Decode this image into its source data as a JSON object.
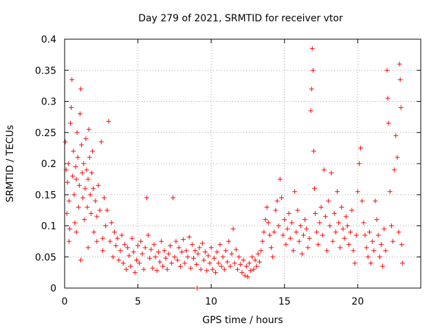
{
  "chart_data": {
    "type": "scatter",
    "title": "Day 279 of 2021, SRMTID for receiver vtor",
    "xlabel": "GPS time / hours",
    "ylabel": "SRMTID / TECUs",
    "xlim": [
      0,
      24.3
    ],
    "ylim": [
      0,
      0.4
    ],
    "xticks": [
      0,
      5,
      10,
      15,
      20
    ],
    "xtick_labels": [
      "0",
      "5",
      "10",
      "15",
      "20"
    ],
    "yticks": [
      0,
      0.05,
      0.1,
      0.15,
      0.2,
      0.25,
      0.3,
      0.35,
      0.4
    ],
    "ytick_labels": [
      "0",
      "0.05",
      "0.1",
      "0.15",
      "0.2",
      "0.25",
      "0.3",
      "0.35",
      "0.4"
    ],
    "grid": true,
    "marker": "+",
    "color": "#ff0000",
    "series": [
      {
        "name": "SRMTID",
        "points": [
          [
            0.05,
            0.235
          ],
          [
            0.1,
            0.19
          ],
          [
            0.15,
            0.12
          ],
          [
            0.2,
            0.17
          ],
          [
            0.25,
            0.2
          ],
          [
            0.3,
            0.14
          ],
          [
            0.35,
            0.095
          ],
          [
            0.4,
            0.265
          ],
          [
            0.45,
            0.29
          ],
          [
            0.5,
            0.335
          ],
          [
            0.55,
            0.18
          ],
          [
            0.6,
            0.22
          ],
          [
            0.65,
            0.15
          ],
          [
            0.7,
            0.105
          ],
          [
            0.75,
            0.195
          ],
          [
            0.8,
            0.175
          ],
          [
            0.85,
            0.25
          ],
          [
            0.9,
            0.21
          ],
          [
            0.95,
            0.13
          ],
          [
            1.0,
            0.165
          ],
          [
            1.05,
            0.28
          ],
          [
            1.1,
            0.32
          ],
          [
            1.15,
            0.23
          ],
          [
            1.2,
            0.185
          ],
          [
            1.25,
            0.145
          ],
          [
            1.3,
            0.2
          ],
          [
            1.35,
            0.11
          ],
          [
            1.4,
            0.16
          ],
          [
            1.45,
            0.24
          ],
          [
            1.5,
            0.19
          ],
          [
            1.55,
            0.13
          ],
          [
            1.6,
            0.175
          ],
          [
            1.65,
            0.255
          ],
          [
            1.7,
            0.21
          ],
          [
            1.75,
            0.15
          ],
          [
            1.8,
            0.12
          ],
          [
            1.85,
            0.185
          ],
          [
            1.9,
            0.22
          ],
          [
            1.95,
            0.16
          ],
          [
            2.0,
            0.09
          ],
          [
            2.1,
            0.14
          ],
          [
            2.2,
            0.115
          ],
          [
            2.3,
            0.165
          ],
          [
            2.4,
            0.125
          ],
          [
            2.5,
            0.235
          ],
          [
            2.6,
            0.08
          ],
          [
            2.7,
            0.145
          ],
          [
            2.8,
            0.1
          ],
          [
            2.9,
            0.125
          ],
          [
            3.0,
            0.268
          ],
          [
            0.3,
            0.075
          ],
          [
            0.8,
            0.09
          ],
          [
            1.1,
            0.045
          ],
          [
            1.6,
            0.065
          ],
          [
            2.2,
            0.075
          ],
          [
            2.6,
            0.06
          ],
          [
            3.1,
            0.075
          ],
          [
            3.2,
            0.105
          ],
          [
            3.3,
            0.05
          ],
          [
            3.4,
            0.09
          ],
          [
            3.5,
            0.068
          ],
          [
            3.6,
            0.08
          ],
          [
            3.7,
            0.045
          ],
          [
            3.8,
            0.06
          ],
          [
            3.9,
            0.085
          ],
          [
            4.0,
            0.04
          ],
          [
            4.1,
            0.07
          ],
          [
            4.2,
            0.03
          ],
          [
            4.3,
            0.065
          ],
          [
            4.4,
            0.052
          ],
          [
            4.5,
            0.035
          ],
          [
            4.6,
            0.08
          ],
          [
            4.7,
            0.058
          ],
          [
            4.8,
            0.025
          ],
          [
            4.9,
            0.045
          ],
          [
            5.0,
            0.068
          ],
          [
            5.1,
            0.04
          ],
          [
            5.2,
            0.075
          ],
          [
            5.3,
            0.055
          ],
          [
            5.4,
            0.03
          ],
          [
            5.5,
            0.065
          ],
          [
            5.6,
            0.145
          ],
          [
            5.7,
            0.085
          ],
          [
            5.8,
            0.048
          ],
          [
            5.9,
            0.062
          ],
          [
            6.0,
            0.032
          ],
          [
            6.1,
            0.07
          ],
          [
            6.2,
            0.05
          ],
          [
            6.3,
            0.028
          ],
          [
            6.4,
            0.058
          ],
          [
            6.5,
            0.042
          ],
          [
            6.6,
            0.075
          ],
          [
            6.7,
            0.035
          ],
          [
            6.8,
            0.06
          ],
          [
            6.9,
            0.048
          ],
          [
            7.0,
            0.03
          ],
          [
            7.1,
            0.055
          ],
          [
            7.2,
            0.068
          ],
          [
            7.3,
            0.04
          ],
          [
            7.4,
            0.145
          ],
          [
            7.5,
            0.05
          ],
          [
            7.6,
            0.075
          ],
          [
            7.7,
            0.045
          ],
          [
            7.8,
            0.065
          ],
          [
            7.9,
            0.035
          ],
          [
            8.0,
            0.058
          ],
          [
            8.1,
            0.078
          ],
          [
            8.2,
            0.04
          ],
          [
            8.3,
            0.06
          ],
          [
            8.4,
            0.05
          ],
          [
            8.5,
            0.082
          ],
          [
            8.6,
            0.032
          ],
          [
            8.7,
            0.07
          ],
          [
            8.8,
            0.048
          ],
          [
            8.9,
            0.06
          ],
          [
            9.0,
            0.038
          ],
          [
            9.05,
            0.0
          ],
          [
            9.1,
            0.055
          ],
          [
            9.2,
            0.065
          ],
          [
            9.3,
            0.03
          ],
          [
            9.4,
            0.072
          ],
          [
            9.5,
            0.045
          ],
          [
            9.6,
            0.058
          ],
          [
            9.7,
            0.028
          ],
          [
            9.8,
            0.052
          ],
          [
            9.9,
            0.04
          ],
          [
            10.0,
            0.065
          ],
          [
            10.1,
            0.03
          ],
          [
            10.2,
            0.048
          ],
          [
            10.3,
            0.025
          ],
          [
            10.4,
            0.058
          ],
          [
            10.5,
            0.04
          ],
          [
            10.6,
            0.07
          ],
          [
            10.7,
            0.035
          ],
          [
            10.8,
            0.05
          ],
          [
            10.9,
            0.03
          ],
          [
            11.0,
            0.06
          ],
          [
            11.1,
            0.042
          ],
          [
            11.2,
            0.075
          ],
          [
            11.3,
            0.035
          ],
          [
            11.4,
            0.055
          ],
          [
            11.5,
            0.095
          ],
          [
            11.6,
            0.04
          ],
          [
            11.7,
            0.062
          ],
          [
            11.8,
            0.03
          ],
          [
            11.9,
            0.05
          ],
          [
            12.0,
            0.038
          ],
          [
            12.1,
            0.025
          ],
          [
            12.2,
            0.045
          ],
          [
            12.3,
            0.02
          ],
          [
            12.4,
            0.035
          ],
          [
            12.5,
            0.018
          ],
          [
            12.6,
            0.04
          ],
          [
            12.7,
            0.028
          ],
          [
            12.8,
            0.05
          ],
          [
            12.9,
            0.03
          ],
          [
            13.0,
            0.045
          ],
          [
            13.1,
            0.035
          ],
          [
            13.2,
            0.055
          ],
          [
            13.3,
            0.042
          ],
          [
            13.4,
            0.06
          ],
          [
            13.5,
            0.075
          ],
          [
            13.6,
            0.09
          ],
          [
            13.7,
            0.11
          ],
          [
            13.8,
            0.13
          ],
          [
            13.9,
            0.105
          ],
          [
            14.0,
            0.085
          ],
          [
            14.1,
            0.065
          ],
          [
            14.2,
            0.05
          ],
          [
            14.3,
            0.09
          ],
          [
            14.4,
            0.125
          ],
          [
            14.5,
            0.14
          ],
          [
            14.6,
            0.1
          ],
          [
            14.7,
            0.175
          ],
          [
            14.8,
            0.145
          ],
          [
            14.9,
            0.085
          ],
          [
            15.0,
            0.11
          ],
          [
            15.1,
            0.07
          ],
          [
            15.2,
            0.095
          ],
          [
            15.3,
            0.12
          ],
          [
            15.4,
            0.08
          ],
          [
            15.5,
            0.105
          ],
          [
            15.6,
            0.06
          ],
          [
            15.7,
            0.155
          ],
          [
            15.8,
            0.09
          ],
          [
            15.9,
            0.125
          ],
          [
            16.0,
            0.075
          ],
          [
            16.1,
            0.1
          ],
          [
            16.2,
            0.055
          ],
          [
            16.3,
            0.085
          ],
          [
            16.4,
            0.11
          ],
          [
            16.5,
            0.095
          ],
          [
            16.6,
            0.065
          ],
          [
            16.7,
            0.08
          ],
          [
            16.8,
            0.285
          ],
          [
            16.85,
            0.32
          ],
          [
            16.9,
            0.385
          ],
          [
            16.95,
            0.35
          ],
          [
            17.0,
            0.22
          ],
          [
            17.05,
            0.16
          ],
          [
            17.1,
            0.12
          ],
          [
            17.2,
            0.09
          ],
          [
            17.3,
            0.07
          ],
          [
            17.4,
            0.105
          ],
          [
            17.5,
            0.13
          ],
          [
            17.6,
            0.085
          ],
          [
            17.7,
            0.19
          ],
          [
            17.8,
            0.115
          ],
          [
            17.9,
            0.06
          ],
          [
            18.0,
            0.14
          ],
          [
            18.1,
            0.1
          ],
          [
            18.2,
            0.185
          ],
          [
            18.3,
            0.075
          ],
          [
            18.4,
            0.12
          ],
          [
            18.5,
            0.09
          ],
          [
            18.6,
            0.155
          ],
          [
            18.7,
            0.105
          ],
          [
            18.8,
            0.065
          ],
          [
            18.9,
            0.13
          ],
          [
            19.0,
            0.095
          ],
          [
            19.1,
            0.08
          ],
          [
            19.2,
            0.115
          ],
          [
            19.3,
            0.1
          ],
          [
            19.4,
            0.07
          ],
          [
            19.5,
            0.09
          ],
          [
            19.6,
            0.125
          ],
          [
            19.7,
            0.06
          ],
          [
            19.8,
            0.04
          ],
          [
            19.9,
            0.085
          ],
          [
            20.0,
            0.155
          ],
          [
            20.1,
            0.2
          ],
          [
            20.2,
            0.225
          ],
          [
            20.3,
            0.14
          ],
          [
            20.4,
            0.105
          ],
          [
            20.5,
            0.085
          ],
          [
            20.6,
            0.065
          ],
          [
            20.7,
            0.05
          ],
          [
            20.8,
            0.09
          ],
          [
            20.9,
            0.04
          ],
          [
            21.0,
            0.075
          ],
          [
            21.1,
            0.06
          ],
          [
            21.2,
            0.14
          ],
          [
            21.3,
            0.11
          ],
          [
            21.4,
            0.085
          ],
          [
            21.5,
            0.05
          ],
          [
            21.6,
            0.07
          ],
          [
            21.7,
            0.035
          ],
          [
            21.8,
            0.095
          ],
          [
            21.9,
            0.06
          ],
          [
            22.0,
            0.35
          ],
          [
            22.05,
            0.305
          ],
          [
            22.1,
            0.265
          ],
          [
            22.2,
            0.155
          ],
          [
            22.3,
            0.1
          ],
          [
            22.4,
            0.075
          ],
          [
            22.5,
            0.19
          ],
          [
            22.6,
            0.245
          ],
          [
            22.7,
            0.21
          ],
          [
            22.8,
            0.09
          ],
          [
            22.85,
            0.36
          ],
          [
            22.9,
            0.335
          ],
          [
            22.95,
            0.29
          ],
          [
            23.0,
            0.07
          ],
          [
            23.05,
            0.04
          ]
        ]
      }
    ]
  }
}
